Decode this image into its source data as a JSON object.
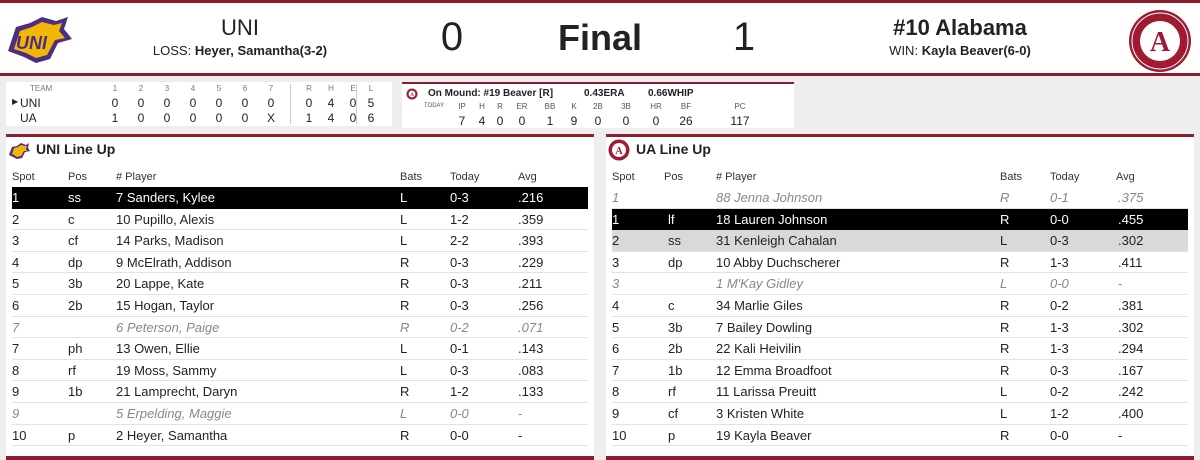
{
  "header": {
    "away_name": "UNI",
    "away_dec_label": "LOSS:",
    "away_dec_text": "Heyer, Samantha(3-2)",
    "away_score": "0",
    "status": "Final",
    "home_score": "1",
    "home_name": "#10 Alabama",
    "home_dec_label": "WIN:",
    "home_dec_text": "Kayla Beaver(6-0)",
    "ua_logo_text": "ALABAMA CRIMSON TIDE"
  },
  "linescore": {
    "headers": [
      "TEAM",
      "1",
      "2",
      "3",
      "4",
      "5",
      "6",
      "7",
      "R",
      "H",
      "E",
      "L"
    ],
    "rows": [
      {
        "team": "UNI",
        "innings": [
          "0",
          "0",
          "0",
          "0",
          "0",
          "0",
          "0"
        ],
        "r": "0",
        "h": "4",
        "e": "0",
        "l": "5"
      },
      {
        "team": "UA",
        "innings": [
          "1",
          "0",
          "0",
          "0",
          "0",
          "0",
          "X"
        ],
        "r": "1",
        "h": "4",
        "e": "0",
        "l": "6"
      }
    ]
  },
  "pitching": {
    "on_mound": "On Mound: #19 Beaver [R]",
    "era": "0.43ERA",
    "whip": "0.66WHIP",
    "today_label": "TODAY",
    "headers": [
      "IP",
      "H",
      "R",
      "ER",
      "BB",
      "K",
      "2B",
      "3B",
      "HR",
      "BF",
      "PC"
    ],
    "values": [
      "7",
      "4",
      "0",
      "0",
      "1",
      "9",
      "0",
      "0",
      "0",
      "26",
      "117"
    ]
  },
  "columns": {
    "spot": "Spot",
    "pos": "Pos",
    "player": "# Player",
    "bats": "Bats",
    "today": "Today",
    "avg": "Avg"
  },
  "uni_lineup": {
    "title": "UNI Line Up",
    "rows": [
      {
        "spot": "1",
        "pos": "ss",
        "player": "7 Sanders, Kylee",
        "bats": "L",
        "today": "0-3",
        "avg": ".216"
      },
      {
        "spot": "2",
        "pos": "c",
        "player": "10 Pupillo, Alexis",
        "bats": "L",
        "today": "1-2",
        "avg": ".359"
      },
      {
        "spot": "3",
        "pos": "cf",
        "player": "14 Parks, Madison",
        "bats": "L",
        "today": "2-2",
        "avg": ".393"
      },
      {
        "spot": "4",
        "pos": "dp",
        "player": "9 McElrath, Addison",
        "bats": "R",
        "today": "0-3",
        "avg": ".229"
      },
      {
        "spot": "5",
        "pos": "3b",
        "player": "20 Lappe, Kate",
        "bats": "R",
        "today": "0-3",
        "avg": ".211"
      },
      {
        "spot": "6",
        "pos": "2b",
        "player": "15 Hogan, Taylor",
        "bats": "R",
        "today": "0-3",
        "avg": ".256"
      },
      {
        "spot": "7",
        "pos": "",
        "player": "6 Peterson, Paige",
        "bats": "R",
        "today": "0-2",
        "avg": ".071"
      },
      {
        "spot": "7",
        "pos": "ph",
        "player": "13 Owen, Ellie",
        "bats": "L",
        "today": "0-1",
        "avg": ".143"
      },
      {
        "spot": "8",
        "pos": "rf",
        "player": "19 Moss, Sammy",
        "bats": "L",
        "today": "0-3",
        "avg": ".083"
      },
      {
        "spot": "9",
        "pos": "1b",
        "player": "21 Lamprecht, Daryn",
        "bats": "R",
        "today": "1-2",
        "avg": ".133"
      },
      {
        "spot": "9",
        "pos": "",
        "player": "5 Erpelding, Maggie",
        "bats": "L",
        "today": "0-0",
        "avg": "-"
      },
      {
        "spot": "10",
        "pos": "p",
        "player": "2 Heyer, Samantha",
        "bats": "R",
        "today": "0-0",
        "avg": "-"
      }
    ]
  },
  "ua_lineup": {
    "title": "UA Line Up",
    "rows": [
      {
        "spot": "1",
        "pos": "",
        "player": "88 Jenna Johnson",
        "bats": "R",
        "today": "0-1",
        "avg": ".375"
      },
      {
        "spot": "1",
        "pos": "lf",
        "player": "18 Lauren Johnson",
        "bats": "R",
        "today": "0-0",
        "avg": ".455"
      },
      {
        "spot": "2",
        "pos": "ss",
        "player": "31 Kenleigh Cahalan",
        "bats": "L",
        "today": "0-3",
        "avg": ".302"
      },
      {
        "spot": "3",
        "pos": "dp",
        "player": "10 Abby Duchscherer",
        "bats": "R",
        "today": "1-3",
        "avg": ".411"
      },
      {
        "spot": "3",
        "pos": "",
        "player": "1 M'Kay Gidley",
        "bats": "L",
        "today": "0-0",
        "avg": "-"
      },
      {
        "spot": "4",
        "pos": "c",
        "player": "34 Marlie Giles",
        "bats": "R",
        "today": "0-2",
        "avg": ".381"
      },
      {
        "spot": "5",
        "pos": "3b",
        "player": "7 Bailey Dowling",
        "bats": "R",
        "today": "1-3",
        "avg": ".302"
      },
      {
        "spot": "6",
        "pos": "2b",
        "player": "22 Kali Heivilin",
        "bats": "R",
        "today": "1-3",
        "avg": ".294"
      },
      {
        "spot": "7",
        "pos": "1b",
        "player": "12 Emma Broadfoot",
        "bats": "R",
        "today": "0-3",
        "avg": ".167"
      },
      {
        "spot": "8",
        "pos": "rf",
        "player": "11 Larissa Preuitt",
        "bats": "L",
        "today": "0-2",
        "avg": ".242"
      },
      {
        "spot": "9",
        "pos": "cf",
        "player": "3 Kristen White",
        "bats": "L",
        "today": "1-2",
        "avg": ".400"
      },
      {
        "spot": "10",
        "pos": "p",
        "player": "19 Kayla Beaver",
        "bats": "R",
        "today": "0-0",
        "avg": "-"
      }
    ]
  }
}
